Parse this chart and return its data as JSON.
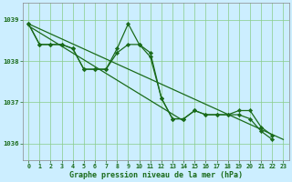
{
  "bg_color": "#cceeff",
  "line_color": "#1a6b1a",
  "marker_color": "#1a6b1a",
  "grid_color": "#88cc88",
  "xlabel": "Graphe pression niveau de la mer (hPa)",
  "ylim": [
    1035.6,
    1039.4
  ],
  "xlim": [
    -0.5,
    23.5
  ],
  "yticks": [
    1036,
    1037,
    1038,
    1039
  ],
  "xticks": [
    0,
    1,
    2,
    3,
    4,
    5,
    6,
    7,
    8,
    9,
    10,
    11,
    12,
    13,
    14,
    15,
    16,
    17,
    18,
    19,
    20,
    21,
    22,
    23
  ],
  "series1": [
    1038.9,
    1038.4,
    1038.4,
    1038.4,
    1038.3,
    1037.8,
    1037.8,
    1037.8,
    1038.3,
    1038.9,
    1038.4,
    1038.2,
    1037.1,
    1036.6,
    1036.6,
    1036.8,
    1036.7,
    1036.7,
    1036.7,
    1036.8,
    1036.8,
    1036.4,
    1036.2,
    null
  ],
  "series2": [
    1038.9,
    1038.4,
    1038.4,
    1038.4,
    1038.3,
    1037.8,
    1037.8,
    1037.8,
    1038.2,
    1038.4,
    1038.4,
    1038.1,
    1037.1,
    1036.6,
    1036.6,
    1036.8,
    1036.7,
    1036.7,
    1036.7,
    1036.7,
    1036.6,
    1036.3,
    1036.1,
    null
  ],
  "trend1_x": [
    0,
    23
  ],
  "trend1_y": [
    1038.9,
    1036.1
  ],
  "trend2_x": [
    0,
    14
  ],
  "trend2_y": [
    1038.85,
    1036.55
  ]
}
